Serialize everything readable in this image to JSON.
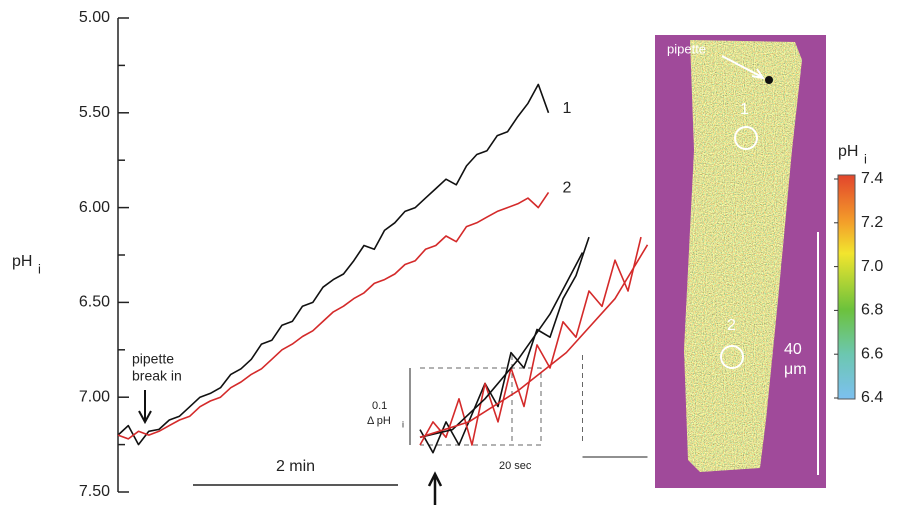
{
  "chart_data": [
    {
      "type": "line",
      "ylabel": "pH",
      "ylabel_sub": "i",
      "ylim": [
        7.5,
        5.0
      ],
      "yticks": [
        {
          "value": 5.0,
          "label": "5.00"
        },
        {
          "value": 5.5,
          "label": "5.50"
        },
        {
          "value": 6.0,
          "label": "6.00"
        },
        {
          "value": 6.5,
          "label": "6.50"
        },
        {
          "value": 7.0,
          "label": "7.00"
        },
        {
          "value": 7.5,
          "label": "7.50"
        }
      ],
      "yminor": [
        5.25,
        5.75,
        6.25,
        6.75,
        7.25
      ],
      "xlim": [
        0,
        4.3
      ],
      "x": [
        0,
        0.1,
        0.2,
        0.3,
        0.4,
        0.5,
        0.6,
        0.7,
        0.8,
        0.9,
        1.0,
        1.1,
        1.2,
        1.3,
        1.4,
        1.5,
        1.6,
        1.7,
        1.8,
        1.9,
        2.0,
        2.1,
        2.2,
        2.3,
        2.4,
        2.5,
        2.6,
        2.7,
        2.8,
        2.9,
        3.0,
        3.1,
        3.2,
        3.3,
        3.4,
        3.5,
        3.6,
        3.7,
        3.8,
        3.9,
        4.0,
        4.1,
        4.2
      ],
      "series": [
        {
          "name": "1",
          "color": "#111111",
          "values": [
            7.2,
            7.15,
            7.25,
            7.18,
            7.17,
            7.12,
            7.1,
            7.05,
            7.0,
            6.98,
            6.95,
            6.88,
            6.85,
            6.8,
            6.72,
            6.7,
            6.62,
            6.6,
            6.52,
            6.5,
            6.42,
            6.38,
            6.35,
            6.28,
            6.2,
            6.22,
            6.12,
            6.08,
            6.02,
            6.0,
            5.95,
            5.9,
            5.85,
            5.88,
            5.78,
            5.72,
            5.7,
            5.62,
            5.6,
            5.52,
            5.45,
            5.35,
            5.5
          ]
        },
        {
          "name": "2",
          "color": "#d42a2a",
          "values": [
            7.2,
            7.22,
            7.18,
            7.2,
            7.18,
            7.15,
            7.12,
            7.1,
            7.05,
            7.02,
            7.0,
            6.95,
            6.92,
            6.88,
            6.85,
            6.8,
            6.75,
            6.72,
            6.68,
            6.65,
            6.6,
            6.55,
            6.52,
            6.48,
            6.45,
            6.4,
            6.38,
            6.35,
            6.3,
            6.28,
            6.22,
            6.2,
            6.15,
            6.18,
            6.1,
            6.08,
            6.05,
            6.02,
            6.0,
            5.98,
            5.95,
            6.0,
            5.92
          ]
        }
      ],
      "scale_bar": {
        "value": 2,
        "label": "2 min"
      },
      "annotation": [
        "pipette",
        "break in"
      ]
    },
    {
      "type": "line",
      "xlim": [
        0,
        70
      ],
      "ylim": [
        0,
        0.3
      ],
      "scale_y": {
        "value": 0.1,
        "label": "0.1"
      },
      "scale_y_label": "Δ pH",
      "scale_y_sub": "i",
      "scale_x": {
        "value": 20,
        "label": "20 sec"
      },
      "series": [
        {
          "color": "#111111",
          "x": [
            0,
            4,
            8,
            12,
            16,
            20,
            24,
            28,
            32,
            36,
            40,
            44,
            48,
            52
          ],
          "values": [
            0.02,
            -0.01,
            0.03,
            0.0,
            0.04,
            0.08,
            0.05,
            0.12,
            0.1,
            0.15,
            0.14,
            0.19,
            0.22,
            0.27
          ]
        },
        {
          "color": "#d42a2a",
          "x": [
            0,
            4,
            8,
            12,
            16,
            20,
            24,
            28,
            32,
            36,
            40,
            44,
            48,
            52,
            56,
            60,
            64,
            68
          ],
          "values": [
            0.0,
            0.03,
            0.01,
            0.06,
            0.0,
            0.08,
            0.03,
            0.1,
            0.05,
            0.13,
            0.1,
            0.16,
            0.14,
            0.2,
            0.18,
            0.24,
            0.2,
            0.27
          ]
        },
        {
          "color": "#111111",
          "x": [
            0,
            10,
            20,
            30,
            40,
            50
          ],
          "values": [
            0.01,
            0.02,
            0.06,
            0.11,
            0.17,
            0.25
          ]
        },
        {
          "color": "#d42a2a",
          "x": [
            0,
            15,
            30,
            45,
            60,
            70
          ],
          "values": [
            0.01,
            0.03,
            0.07,
            0.12,
            0.19,
            0.26
          ]
        }
      ]
    }
  ],
  "image": {
    "pipette": "pipette",
    "roi_1": "1",
    "roi_2": "2",
    "scale_value": "40",
    "scale_unit": "μm",
    "colorbar": {
      "label": "pH",
      "label_sub": "i",
      "lim": [
        6.4,
        7.4
      ],
      "ticks": [
        {
          "value": 7.4,
          "label": "7.4"
        },
        {
          "value": 7.2,
          "label": "7.2"
        },
        {
          "value": 7.0,
          "label": "7.0"
        },
        {
          "value": 6.8,
          "label": "6.8"
        },
        {
          "value": 6.6,
          "label": "6.6"
        },
        {
          "value": 6.4,
          "label": "6.4"
        }
      ]
    }
  }
}
